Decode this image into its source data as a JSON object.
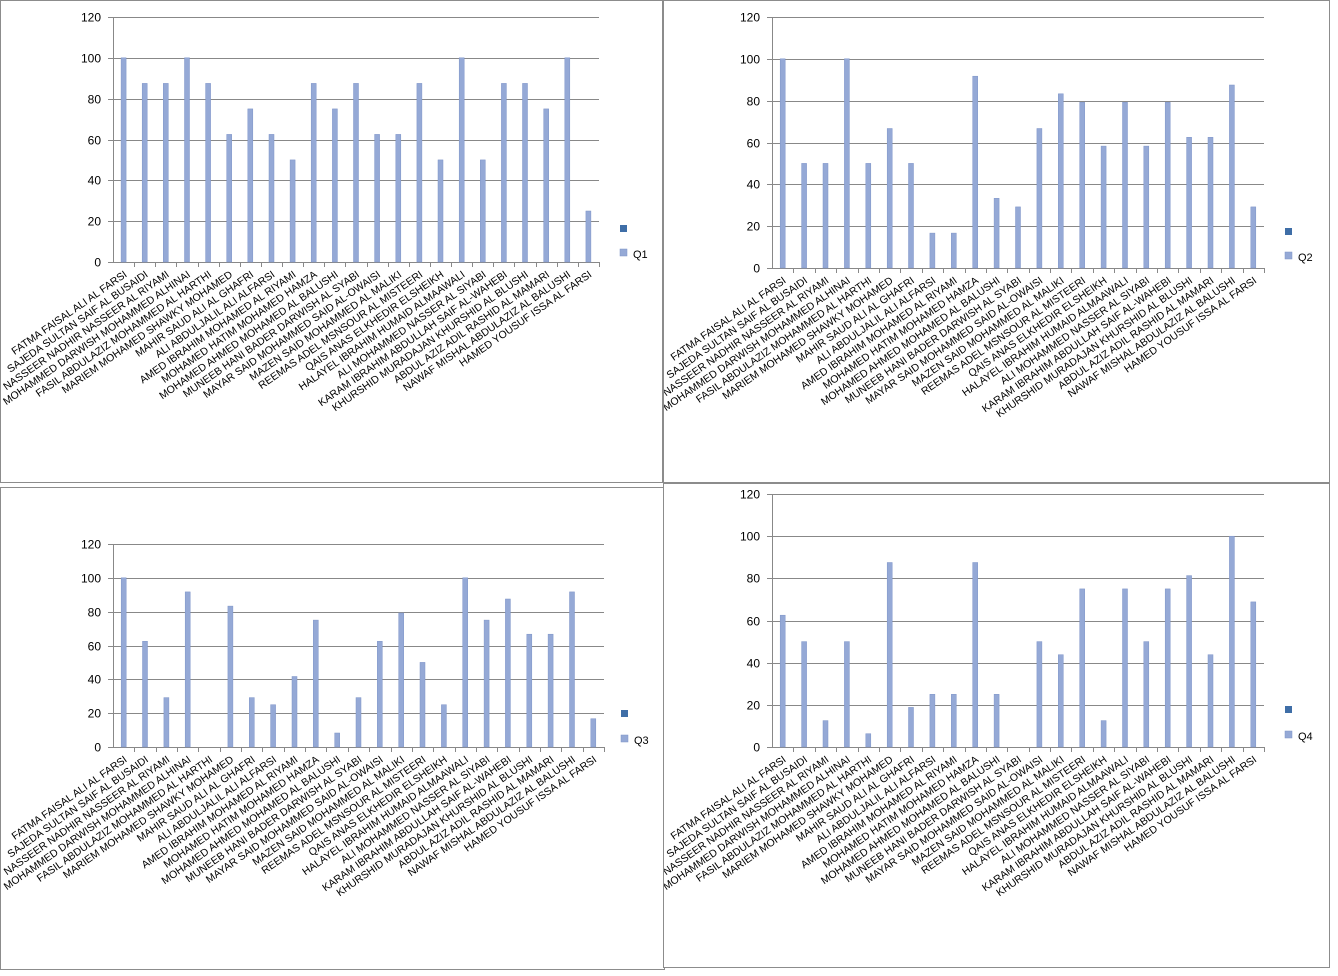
{
  "colors": {
    "bar": "#95a9d6",
    "bar_stroke": "#7e94c8",
    "legend_square": "#3f6ea7",
    "grid": "#888888",
    "text": "#000000"
  },
  "chart_data": [
    {
      "type": "bar",
      "categories": [
        "FATMA FAISAL ALI AL FARSI",
        "SAJEDA SULTAN SAIF AL BUSAIDI",
        "NASSEER NADHIR NASSEER AL RIYAMI",
        "MOHAMMED DARWISH MOHAMMED ALHINAI",
        "FASIL ABDULAZIZ MOHAMMED AL HARTHI",
        "MARIEM MOHAMED SHAWKY MOHAMED",
        "MAHIR SAUD ALI AL GHAFRI",
        "ALI ABDULJALIL ALI ALFARSI",
        "AMED IBRAHIM MOHAMED AL RIYAMI",
        "MOHAMED HATIM MOHAMED HAMZA",
        "MOHAMED AHMED MOHAMED AL BALUSHI",
        "MUNEEB HANI BADER DARWISH AL SYABI",
        "MAYAR SAID MOHAMMED SAID AL-OWAISI",
        "MAZEN SAID MOHAMMED AL MALIKI",
        "REEMAS ADEL MSNSOUR AL MISTEERI",
        "QAIS ANAS ELKHEDIR ELSHEIKH",
        "HALAYEL IBRAHIM HUMAID ALMAAWALI",
        "ALI MOHAMMED NASSER AL SIYABI",
        "KARAM IBRAHIM ABDULLAH SAIF AL-WAHEBI",
        "KHURSHID MURADAJAN KHURSHID AL BLUSHI",
        "ABDUL AZIZ ADIL RASHID AL MAMARI",
        "NAWAF MISHAL ABDULAZIZ AL BALUSHI",
        "HAMED YOUSUF ISSA AL FARSI"
      ],
      "series": [
        {
          "name": "Q1",
          "values": [
            100,
            87.5,
            87.5,
            100,
            87.5,
            62.5,
            75,
            62.5,
            50,
            87.5,
            75,
            87.5,
            62.5,
            62.5,
            87.5,
            50,
            100,
            50,
            87.5,
            87.5,
            75,
            100,
            25
          ]
        }
      ],
      "ylim": [
        0,
        120
      ],
      "yticks": [
        0,
        20,
        40,
        60,
        80,
        100,
        120
      ],
      "legend": {
        "entries": [
          "",
          "Q1"
        ],
        "position": "right"
      },
      "grid": true
    },
    {
      "type": "bar",
      "categories": [
        "FATMA FAISAL ALI AL FARSI",
        "SAJEDA SULTAN SAIF AL BUSAIDI",
        "NASSEER NADHIR NASSEER AL RIYAMI",
        "MOHAMMED DARWISH MOHAMMED ALHINAI",
        "FASIL ABDULAZIZ MOHAMMED AL HARTHI",
        "MARIEM MOHAMED SHAWKY MOHAMED",
        "MAHIR SAUD ALI AL GHAFRI",
        "ALI ABDULJALIL ALI ALFARSI",
        "AMED IBRAHIM MOHAMED AL RIYAMI",
        "MOHAMED HATIM MOHAMED HAMZA",
        "MOHAMED AHMED MOHAMED AL BALUSHI",
        "MUNEEB HANI BADER DARWISH AL SYABI",
        "MAYAR SAID MOHAMMED SAID AL-OWAISI",
        "MAZEN SAID MOHAMMED AL MALIKI",
        "REEMAS ADEL MSNSOUR AL MISTEERI",
        "QAIS ANAS ELKHEDIR ELSHEIKH",
        "HALAYEL IBRAHIM HUMAID ALMAAWALI",
        "ALI MOHAMMED NASSER AL SIYABI",
        "KARAM IBRAHIM ABDULLAH SAIF AL-WAHEBI",
        "KHURSHID MURADAJAN KHURSHID AL BLUSHI",
        "ABDUL AZIZ ADIL RASHID AL MAMARI",
        "NAWAF MISHAL ABDULAZIZ AL BALUSHI",
        "HAMED YOUSUF ISSA AL FARSI"
      ],
      "series": [
        {
          "name": "Q2",
          "values": [
            100,
            50,
            50,
            100,
            50,
            66.7,
            50,
            16.7,
            16.7,
            91.7,
            33.3,
            29.2,
            66.7,
            83.3,
            79.2,
            58.3,
            79.2,
            58.3,
            79.2,
            62.5,
            62.5,
            87.5,
            29.2
          ]
        }
      ],
      "ylim": [
        0,
        120
      ],
      "yticks": [
        0,
        20,
        40,
        60,
        80,
        100,
        120
      ],
      "legend": {
        "entries": [
          "",
          "Q2"
        ],
        "position": "right"
      },
      "grid": true
    },
    {
      "type": "bar",
      "categories": [
        "FATMA FAISAL ALI AL FARSI",
        "SAJEDA SULTAN SAIF AL BUSAIDI",
        "NASSEER NADHIR NASSEER AL RIYAMI",
        "MOHAMMED DARWISH MOHAMMED ALHINAI",
        "FASIL ABDULAZIZ MOHAMMED AL HARTHI",
        "MARIEM MOHAMED SHAWKY MOHAMED",
        "MAHIR SAUD ALI AL GHAFRI",
        "ALI ABDULJALIL ALI ALFARSI",
        "AMED IBRAHIM MOHAMED AL RIYAMI",
        "MOHAMED HATIM MOHAMED HAMZA",
        "MOHAMED AHMED MOHAMED AL BALUSHI",
        "MUNEEB HANI BADER DARWISH AL SYABI",
        "MAYAR SAID MOHAMMED SAID AL-OWAISI",
        "MAZEN SAID MOHAMMED AL MALIKI",
        "REEMAS ADEL MSNSOUR AL MISTEERI",
        "QAIS ANAS ELKHEDIR ELSHEIKH",
        "HALAYEL IBRAHIM HUMAID ALMAAWALI",
        "ALI MOHAMMED NASSER AL SIYABI",
        "KARAM IBRAHIM ABDULLAH SAIF AL-WAHEBI",
        "KHURSHID MURADAJAN KHURSHID AL BLUSHI",
        "ABDUL AZIZ ADIL RASHID AL MAMARI",
        "NAWAF MISHAL ABDULAZIZ AL BALUSHI",
        "HAMED YOUSUF ISSA AL FARSI"
      ],
      "series": [
        {
          "name": "Q3",
          "values": [
            100,
            62.5,
            29.2,
            91.7,
            0,
            83.3,
            29.2,
            25,
            41.7,
            75,
            8.3,
            29.2,
            62.5,
            79.2,
            50,
            25,
            100,
            75,
            87.5,
            66.7,
            66.7,
            91.7,
            16.7
          ]
        }
      ],
      "ylim": [
        0,
        120
      ],
      "yticks": [
        0,
        20,
        40,
        60,
        80,
        100,
        120
      ],
      "legend": {
        "entries": [
          "",
          "Q3"
        ],
        "position": "right"
      },
      "grid": true
    },
    {
      "type": "bar",
      "categories": [
        "FATMA FAISAL ALI AL FARSI",
        "SAJEDA SULTAN SAIF AL BUSAIDI",
        "NASSEER NADHIR NASSEER AL RIYAMI",
        "MOHAMMED DARWISH MOHAMMED ALHINAI",
        "FASIL ABDULAZIZ MOHAMMED AL HARTHI",
        "MARIEM MOHAMED SHAWKY MOHAMED",
        "MAHIR SAUD ALI AL GHAFRI",
        "ALI ABDULJALIL ALI ALFARSI",
        "AMED IBRAHIM MOHAMED AL RIYAMI",
        "MOHAMED HATIM MOHAMED HAMZA",
        "MOHAMED AHMED MOHAMED AL BALUSHI",
        "MUNEEB HANI BADER DARWISH AL SYABI",
        "MAYAR SAID MOHAMMED SAID AL-OWAISI",
        "MAZEN SAID MOHAMMED AL MALIKI",
        "REEMAS ADEL MSNSOUR AL MISTEERI",
        "QAIS ANAS ELKHEDIR ELSHEIKH",
        "HALAYEL IBRAHIM HUMAID ALMAAWALI",
        "ALI MOHAMMED NASSER AL SIYABI",
        "KARAM IBRAHIM ABDULLAH SAIF AL-WAHEBI",
        "KHURSHID MURADAJAN KHURSHID AL BLUSHI",
        "ABDUL AZIZ ADIL RASHID AL MAMARI",
        "NAWAF MISHAL ABDULAZIZ AL BALUSHI",
        "HAMED YOUSUF ISSA AL FARSI"
      ],
      "series": [
        {
          "name": "Q4",
          "values": [
            62.5,
            50,
            12.5,
            50,
            6.3,
            87.5,
            18.8,
            25,
            25,
            87.5,
            25,
            0,
            50,
            43.8,
            75,
            12.5,
            75,
            50,
            75,
            81.3,
            43.8,
            100,
            68.8
          ]
        }
      ],
      "ylim": [
        0,
        120
      ],
      "yticks": [
        0,
        20,
        40,
        60,
        80,
        100,
        120
      ],
      "legend": {
        "entries": [
          "",
          "Q4"
        ],
        "position": "right"
      },
      "grid": true
    }
  ]
}
